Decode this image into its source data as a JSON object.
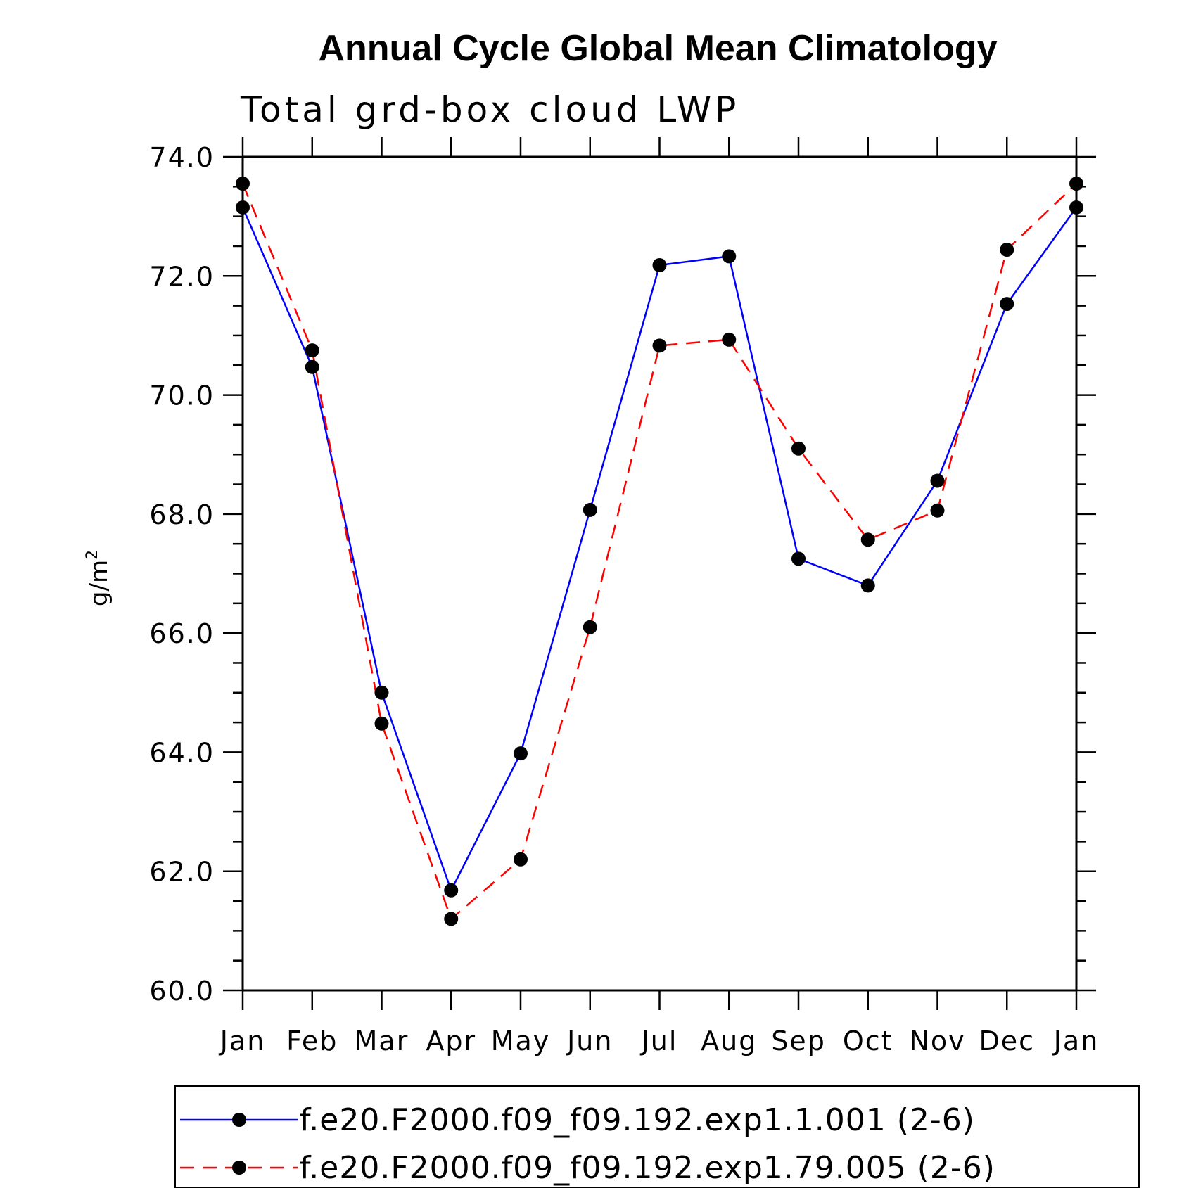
{
  "colors": {
    "series1": "#0000ff",
    "series2": "#ff0000",
    "marker": "#000000",
    "axis": "#000000"
  },
  "chart_data": {
    "type": "line",
    "title": "Annual Cycle Global Mean Climatology",
    "subtitle": "Total grd-box cloud LWP",
    "xlabel": "",
    "ylabel": "g/m",
    "ylabel_superscript": "2",
    "ylim": [
      60.0,
      74.0
    ],
    "y_major_ticks": [
      60.0,
      62.0,
      64.0,
      66.0,
      68.0,
      70.0,
      72.0,
      74.0
    ],
    "y_tick_labels": [
      "60.0",
      "62.0",
      "64.0",
      "66.0",
      "68.0",
      "70.0",
      "72.0",
      "74.0"
    ],
    "y_minor_step": 0.5,
    "categories": [
      "Jan",
      "Feb",
      "Mar",
      "Apr",
      "May",
      "Jun",
      "Jul",
      "Aug",
      "Sep",
      "Oct",
      "Nov",
      "Dec",
      "Jan"
    ],
    "legend_position": "bottom",
    "series": [
      {
        "name": "f.e20.F2000.f09_f09.192.exp1.1.001 (2-6)",
        "style": "solid",
        "color": "#0000ff",
        "values": [
          73.15,
          70.47,
          65.0,
          61.68,
          63.98,
          68.07,
          72.18,
          72.33,
          67.25,
          66.8,
          68.56,
          71.53,
          73.15
        ]
      },
      {
        "name": "f.e20.F2000.f09_f09.192.exp1.79.005 (2-6)",
        "style": "dashed",
        "color": "#ff0000",
        "values": [
          73.55,
          70.75,
          64.48,
          61.2,
          62.2,
          66.1,
          70.83,
          70.93,
          69.1,
          67.57,
          68.06,
          72.44,
          73.55
        ]
      }
    ]
  }
}
